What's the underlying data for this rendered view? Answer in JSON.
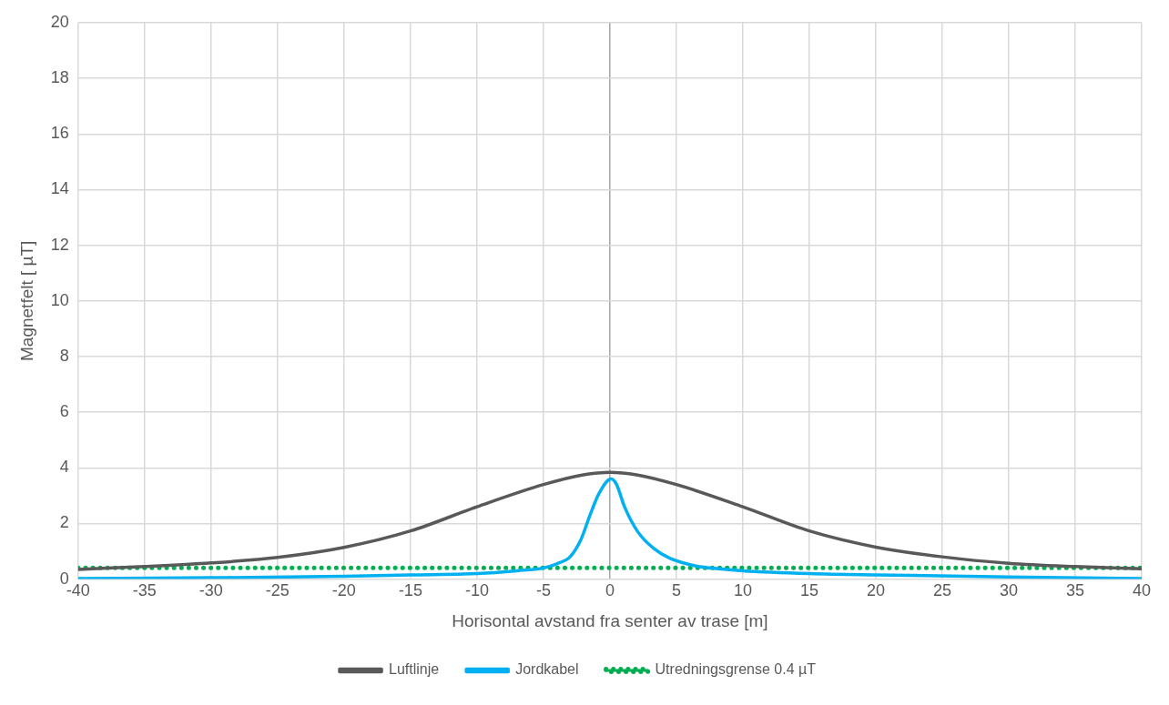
{
  "chart_data": {
    "type": "line",
    "xlabel": "Horisontal avstand fra senter av trase [m]",
    "ylabel": "Magnetfelt [ µT]",
    "xlim": [
      -40,
      40
    ],
    "xticks": [
      -40,
      -35,
      -30,
      -25,
      -20,
      -15,
      -10,
      -5,
      0,
      5,
      10,
      15,
      20,
      25,
      30,
      35,
      40
    ],
    "ylim": [
      0,
      20
    ],
    "yticks": [
      0,
      2,
      4,
      6,
      8,
      10,
      12,
      14,
      16,
      18,
      20
    ],
    "grid": true,
    "legend": "bottom",
    "marker": "none",
    "series": [
      {
        "name": "Luftlinje",
        "color": "#595959",
        "line_style": "solid",
        "x": [
          -40,
          -35,
          -30,
          -25,
          -20,
          -15,
          -10,
          -5,
          -2,
          0,
          2,
          5,
          10,
          15,
          20,
          25,
          30,
          35,
          40
        ],
        "values": [
          0.35,
          0.45,
          0.58,
          0.78,
          1.14,
          1.73,
          2.6,
          3.4,
          3.75,
          3.84,
          3.75,
          3.4,
          2.6,
          1.73,
          1.15,
          0.8,
          0.57,
          0.45,
          0.37
        ]
      },
      {
        "name": "Jordkabel",
        "color": "#00b0f0",
        "line_style": "solid",
        "x": [
          -40,
          -30,
          -20,
          -15,
          -10,
          -7,
          -5,
          -4,
          -3,
          -2.2,
          -1.5,
          -0.8,
          0.1,
          0.5,
          1.1,
          2.1,
          3.3,
          4.5,
          6.4,
          8,
          10,
          15,
          20,
          30,
          40
        ],
        "values": [
          0.02,
          0.05,
          0.1,
          0.15,
          0.2,
          0.3,
          0.4,
          0.55,
          0.8,
          1.4,
          2.3,
          3.1,
          3.6,
          3.4,
          2.6,
          1.7,
          1.1,
          0.75,
          0.48,
          0.38,
          0.3,
          0.2,
          0.15,
          0.08,
          0.02
        ]
      },
      {
        "name": "Utredningsgrense 0.4 µT",
        "color": "#00b050",
        "line_style": "dotted",
        "x": [
          -40,
          40
        ],
        "values": [
          0.4,
          0.4
        ]
      }
    ]
  }
}
